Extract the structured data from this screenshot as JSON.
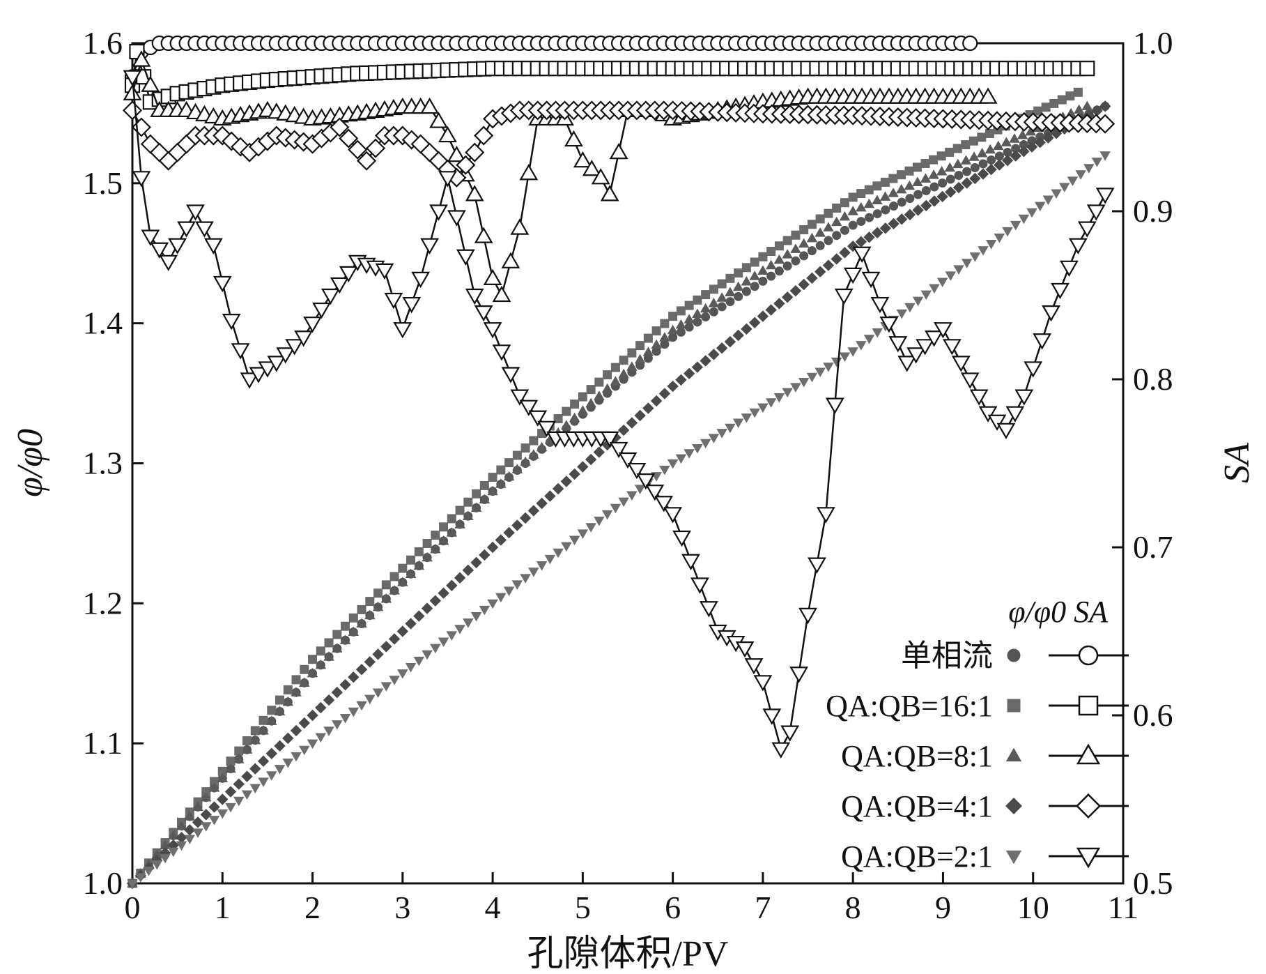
{
  "chart_data": {
    "type": "scatter",
    "xlabel": "孔隙体积/PV",
    "ylabel_left": "φ/φ0",
    "ylabel_right": "SA",
    "xlim": [
      0,
      11
    ],
    "ylim_left": [
      1.0,
      1.6
    ],
    "ylim_right": [
      0.5,
      1.0
    ],
    "x_ticks": [
      "0",
      "1",
      "2",
      "3",
      "4",
      "5",
      "6",
      "7",
      "8",
      "9",
      "10",
      "11"
    ],
    "y_left_ticks": [
      "1.0",
      "1.1",
      "1.2",
      "1.3",
      "1.4",
      "1.5",
      "1.6"
    ],
    "y_right_ticks": [
      "0.5",
      "0.6",
      "0.7",
      "0.8",
      "0.9",
      "1.0"
    ],
    "legend": {
      "header": "φ/φ0 SA",
      "entries": [
        "单相流",
        "QA:QB=16:1",
        "QA:QB=8:1",
        "QA:QB=4:1",
        "QA:QB=2:1"
      ]
    },
    "series_phi": [
      {
        "name": "单相流",
        "marker": "circle",
        "color": "#555555",
        "x": [
          0,
          2,
          4,
          6,
          8,
          10.8
        ],
        "y": [
          1.0,
          1.15,
          1.28,
          1.39,
          1.47,
          1.555
        ]
      },
      {
        "name": "QA:QB=16:1",
        "marker": "square",
        "color": "#6a6a6a",
        "x": [
          0,
          2,
          4,
          6,
          8,
          10.5
        ],
        "y": [
          1.0,
          1.16,
          1.29,
          1.405,
          1.49,
          1.565
        ]
      },
      {
        "name": "QA:QB=8:1",
        "marker": "triangle-up",
        "color": "#5a5a5a",
        "x": [
          0,
          2,
          4,
          6,
          8,
          10.6
        ],
        "y": [
          1.0,
          1.15,
          1.28,
          1.395,
          1.48,
          1.555
        ]
      },
      {
        "name": "QA:QB=4:1",
        "marker": "diamond",
        "color": "#4a4a4a",
        "x": [
          0,
          2,
          4,
          6,
          8,
          10.8
        ],
        "y": [
          1.0,
          1.12,
          1.24,
          1.355,
          1.455,
          1.555
        ]
      },
      {
        "name": "QA:QB=2:1",
        "marker": "triangle-down",
        "color": "#6e6e6e",
        "x": [
          0,
          2,
          4,
          6,
          8,
          10.8
        ],
        "y": [
          1.0,
          1.1,
          1.2,
          1.3,
          1.38,
          1.52
        ]
      }
    ],
    "series_SA": [
      {
        "name": "单相流",
        "marker": "circle",
        "x": [
          0,
          0.1,
          0.3,
          2,
          4,
          6,
          8,
          9.3
        ],
        "y": [
          0.98,
          0.995,
          1.0,
          1.0,
          1.0,
          1.0,
          1.0,
          1.0
        ]
      },
      {
        "name": "QA:QB=16:1",
        "marker": "square",
        "x": [
          0,
          0.05,
          0.2,
          0.5,
          1.0,
          1.5,
          2.0,
          2.5,
          3.0,
          4.0,
          5.0,
          6.0,
          7.0,
          8.0,
          9.0,
          10.0,
          10.6
        ],
        "y": [
          0.975,
          0.995,
          0.965,
          0.97,
          0.975,
          0.978,
          0.98,
          0.982,
          0.983,
          0.985,
          0.985,
          0.985,
          0.985,
          0.985,
          0.985,
          0.985,
          0.985
        ]
      },
      {
        "name": "QA:QB=8:1",
        "marker": "triangle-up",
        "x": [
          0,
          0.1,
          0.3,
          0.6,
          1.0,
          1.5,
          2.0,
          2.5,
          3.0,
          3.3,
          3.5,
          3.8,
          4.0,
          4.1,
          4.2,
          4.3,
          4.5,
          4.8,
          5.0,
          5.2,
          5.3,
          5.5,
          5.8,
          6.0,
          6.5,
          7.0,
          7.5,
          8.0,
          8.5,
          9.0,
          9.5
        ],
        "y": [
          0.97,
          0.99,
          0.96,
          0.96,
          0.955,
          0.96,
          0.955,
          0.958,
          0.962,
          0.962,
          0.945,
          0.91,
          0.86,
          0.85,
          0.87,
          0.89,
          0.955,
          0.955,
          0.93,
          0.92,
          0.91,
          0.96,
          0.96,
          0.955,
          0.96,
          0.965,
          0.968,
          0.968,
          0.968,
          0.968,
          0.968
        ]
      },
      {
        "name": "QA:QB=4:1",
        "marker": "diamond",
        "x": [
          0,
          0.2,
          0.4,
          0.7,
          1.0,
          1.3,
          1.6,
          2.0,
          2.3,
          2.6,
          2.8,
          3.0,
          3.2,
          3.4,
          3.6,
          3.8,
          4.0,
          4.3,
          5.0,
          6.0,
          7.0,
          8.0,
          9.0,
          10.0,
          10.8
        ],
        "y": [
          0.96,
          0.94,
          0.93,
          0.945,
          0.945,
          0.935,
          0.945,
          0.94,
          0.95,
          0.93,
          0.945,
          0.945,
          0.94,
          0.93,
          0.92,
          0.935,
          0.955,
          0.96,
          0.96,
          0.96,
          0.958,
          0.957,
          0.955,
          0.953,
          0.952
        ]
      },
      {
        "name": "QA:QB=2:1",
        "marker": "triangle-down",
        "x": [
          0,
          0.1,
          0.2,
          0.4,
          0.7,
          0.9,
          1.1,
          1.3,
          1.6,
          1.9,
          2.2,
          2.5,
          2.8,
          3.0,
          3.2,
          3.5,
          3.8,
          4.0,
          4.3,
          4.7,
          5.0,
          5.3,
          5.7,
          6.0,
          6.5,
          6.8,
          7.0,
          7.2,
          7.3,
          7.5,
          7.7,
          7.9,
          8.1,
          8.3,
          8.6,
          8.8,
          9.0,
          9.2,
          9.5,
          9.7,
          9.9,
          10.2,
          10.5,
          10.8
        ],
        "y": [
          0.98,
          0.92,
          0.885,
          0.87,
          0.9,
          0.88,
          0.835,
          0.8,
          0.81,
          0.825,
          0.85,
          0.87,
          0.865,
          0.83,
          0.86,
          0.92,
          0.85,
          0.83,
          0.79,
          0.765,
          0.765,
          0.765,
          0.74,
          0.72,
          0.65,
          0.64,
          0.62,
          0.58,
          0.59,
          0.66,
          0.72,
          0.85,
          0.875,
          0.845,
          0.81,
          0.82,
          0.83,
          0.81,
          0.78,
          0.77,
          0.79,
          0.84,
          0.88,
          0.91
        ]
      }
    ]
  }
}
